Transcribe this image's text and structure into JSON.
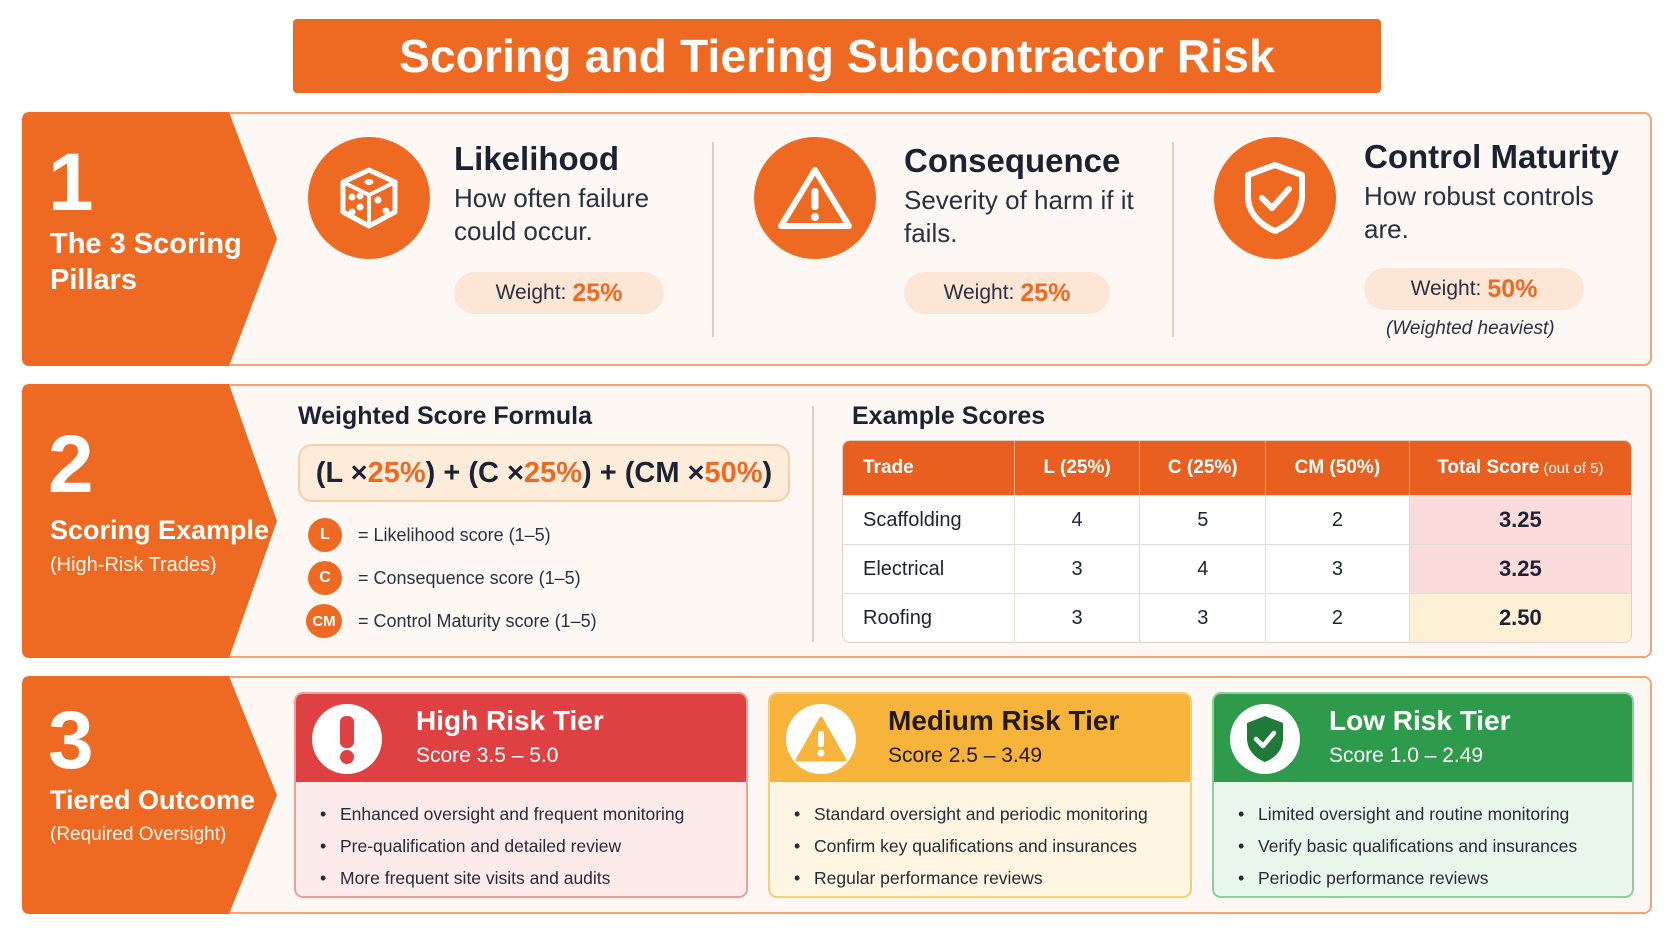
{
  "title": "Scoring and Tiering Subcontractor Risk",
  "colors": {
    "accent": "#ee6a22",
    "high": "#df4143",
    "medium": "#f6b43a",
    "low": "#2e9b4c"
  },
  "section1": {
    "number": "1",
    "label": "The 3 Scoring Pillars",
    "pillars": [
      {
        "icon": "dice-icon",
        "title": "Likelihood",
        "desc": "How often failure could occur.",
        "weight_label": "Weight:",
        "weight": "25%",
        "note": ""
      },
      {
        "icon": "warning-icon",
        "title": "Consequence",
        "desc": "Severity of harm if it fails.",
        "weight_label": "Weight:",
        "weight": "25%",
        "note": ""
      },
      {
        "icon": "shield-check-icon",
        "title": "Control Maturity",
        "desc": "How robust controls are.",
        "weight_label": "Weight:",
        "weight": "50%",
        "note": "(Weighted heaviest)"
      }
    ]
  },
  "section2": {
    "number": "2",
    "label": "Scoring Example",
    "sublabel": "(High-Risk Trades)",
    "formula_heading": "Weighted Score Formula",
    "formula": {
      "p1": "(L × ",
      "w1": "25%",
      "p2": ") + (C × ",
      "w2": "25%",
      "p3": ") + (CM × ",
      "w3": "50%",
      "p4": ")"
    },
    "legend": [
      {
        "badge": "L",
        "text": "=   Likelihood score (1–5)"
      },
      {
        "badge": "C",
        "text": "=   Consequence score (1–5)"
      },
      {
        "badge": "CM",
        "text": "=   Control Maturity score (1–5)"
      }
    ],
    "table_heading": "Example Scores",
    "table": {
      "headers": [
        "Trade",
        "L (25%)",
        "C (25%)",
        "CM (50%)",
        "Total Score"
      ],
      "total_suffix": " (out of 5)",
      "rows": [
        [
          "Scaffolding",
          "4",
          "5",
          "2",
          "3.25"
        ],
        [
          "Electrical",
          "3",
          "4",
          "3",
          "3.25"
        ],
        [
          "Roofing",
          "3",
          "3",
          "2",
          "2.50"
        ]
      ]
    }
  },
  "section3": {
    "number": "3",
    "label": "Tiered Outcome",
    "sublabel": "(Required Oversight)",
    "tiers": [
      {
        "icon": "exclamation-icon",
        "title": "High Risk Tier",
        "range": "Score 3.5 – 5.0",
        "items": [
          "Enhanced oversight and frequent monitoring",
          "Pre-qualification and detailed review",
          "More frequent site visits and audits"
        ]
      },
      {
        "icon": "warning-icon",
        "title": "Medium Risk Tier",
        "range": "Score 2.5 – 3.49",
        "items": [
          "Standard oversight and periodic monitoring",
          "Confirm key qualifications and insurances",
          "Regular performance reviews"
        ]
      },
      {
        "icon": "shield-check-icon",
        "title": "Low Risk Tier",
        "range": "Score 1.0 – 2.49",
        "items": [
          "Limited oversight and routine monitoring",
          "Verify basic qualifications and insurances",
          "Periodic performance reviews"
        ]
      }
    ]
  }
}
